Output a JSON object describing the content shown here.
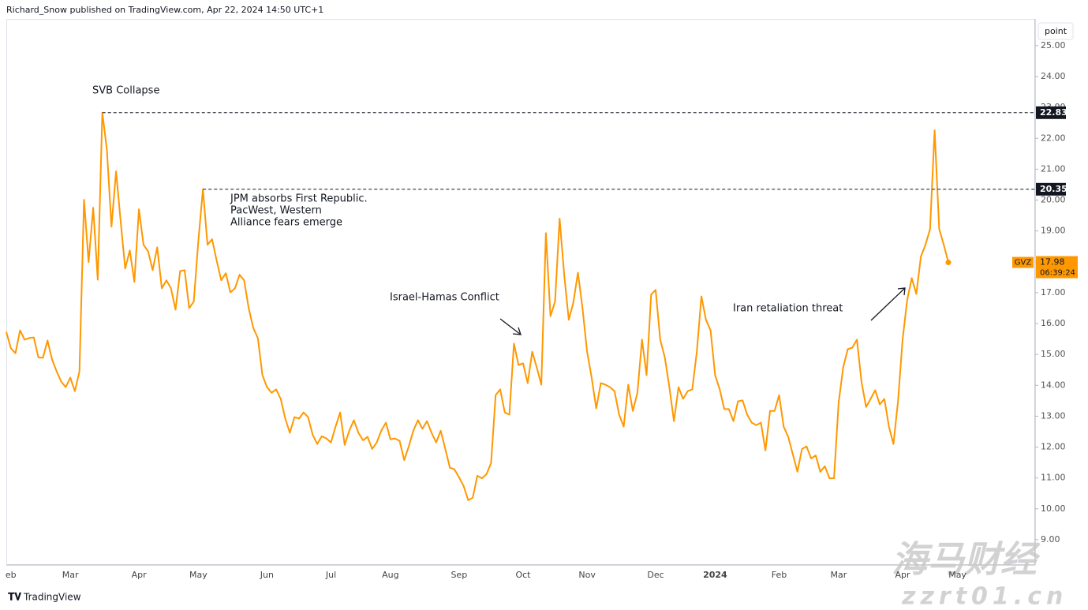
{
  "header": {
    "byline": "Richard_Snow published on TradingView.com, Apr 22, 2024 14:50 UTC+1",
    "scale_button": "point",
    "footer_logo": "TradingView",
    "watermark": [
      "海马财经",
      "zzrt01.cn"
    ]
  },
  "chart_data": {
    "type": "line",
    "categories": [
      null,
      "eb",
      null,
      null,
      null,
      null,
      null,
      null,
      null,
      null,
      null,
      null,
      null,
      null,
      "Mar",
      null,
      null,
      null,
      null,
      null,
      null,
      null,
      null,
      null,
      null,
      null,
      null,
      null,
      null,
      "Apr",
      null,
      null,
      null,
      null,
      null,
      null,
      null,
      null,
      null,
      null,
      null,
      null,
      "May",
      null,
      null,
      null,
      null,
      null,
      null,
      null,
      null,
      null,
      null,
      null,
      null,
      null,
      null,
      "Jun",
      null,
      null,
      null,
      null,
      null,
      null,
      null,
      null,
      null,
      null,
      null,
      null,
      null,
      "Jul",
      null,
      null,
      null,
      null,
      null,
      null,
      null,
      null,
      null,
      null,
      null,
      null,
      "Aug",
      null,
      null,
      null,
      null,
      null,
      null,
      null,
      null,
      null,
      null,
      null,
      null,
      null,
      null,
      "Sep",
      null,
      null,
      null,
      null,
      null,
      null,
      null,
      null,
      null,
      null,
      null,
      null,
      null,
      "Oct",
      null,
      null,
      null,
      null,
      null,
      null,
      null,
      null,
      null,
      null,
      null,
      null,
      null,
      "Nov",
      null,
      null,
      null,
      null,
      null,
      null,
      null,
      null,
      null,
      null,
      null,
      null,
      null,
      null,
      "Dec",
      null,
      null,
      null,
      null,
      null,
      null,
      null,
      null,
      null,
      null,
      null,
      null,
      "2024",
      null,
      null,
      null,
      null,
      null,
      null,
      null,
      null,
      null,
      null,
      null,
      null,
      null,
      "Feb",
      null,
      null,
      null,
      null,
      null,
      null,
      null,
      null,
      null,
      null,
      null,
      null,
      "Mar",
      null,
      null,
      null,
      null,
      null,
      null,
      null,
      null,
      null,
      null,
      null,
      null,
      null,
      "Apr",
      null,
      null,
      null,
      null,
      null,
      null,
      null,
      null,
      null,
      null,
      null,
      "May"
    ],
    "series": [
      {
        "name": "GVZ",
        "color": "#ff9800",
        "values": [
          15.73,
          15.2,
          15.04,
          15.78,
          15.48,
          15.53,
          15.55,
          14.91,
          14.89,
          15.45,
          14.84,
          14.45,
          14.12,
          13.94,
          14.25,
          13.81,
          14.45,
          20.01,
          17.99,
          19.75,
          17.42,
          22.83,
          21.62,
          19.14,
          20.93,
          19.32,
          17.78,
          18.37,
          17.35,
          19.7,
          18.55,
          18.34,
          17.73,
          18.47,
          17.14,
          17.4,
          17.14,
          16.45,
          17.7,
          17.73,
          16.5,
          16.71,
          18.68,
          20.35,
          18.55,
          18.73,
          18.04,
          17.4,
          17.63,
          17.01,
          17.14,
          17.58,
          17.4,
          16.5,
          15.86,
          15.53,
          14.33,
          13.94,
          13.76,
          13.87,
          13.56,
          12.92,
          12.46,
          12.97,
          12.92,
          13.12,
          12.97,
          12.4,
          12.1,
          12.35,
          12.28,
          12.15,
          12.66,
          13.12,
          12.07,
          12.53,
          12.87,
          12.46,
          12.22,
          12.33,
          11.94,
          12.15,
          12.53,
          12.79,
          12.25,
          12.28,
          12.2,
          11.58,
          12.02,
          12.53,
          12.87,
          12.59,
          12.84,
          12.46,
          12.15,
          12.53,
          11.94,
          11.33,
          11.28,
          11.02,
          10.74,
          10.28,
          10.36,
          11.07,
          10.99,
          11.12,
          11.48,
          13.68,
          13.87,
          13.12,
          13.05,
          15.35,
          14.66,
          14.71,
          14.07,
          15.09,
          14.58,
          14.02,
          18.93,
          16.24,
          16.71,
          19.4,
          17.58,
          16.12,
          16.68,
          17.65,
          16.5,
          15.09,
          14.25,
          13.25,
          14.07,
          14.02,
          13.94,
          13.81,
          13.05,
          12.66,
          14.02,
          13.17,
          13.76,
          15.48,
          14.33,
          16.94,
          17.09,
          15.48,
          14.91,
          13.94,
          12.84,
          13.94,
          13.56,
          13.81,
          13.87,
          15.09,
          16.88,
          16.12,
          15.78,
          14.33,
          13.87,
          13.23,
          13.23,
          12.84,
          13.48,
          13.51,
          13.05,
          12.79,
          12.71,
          12.79,
          11.89,
          13.17,
          13.17,
          13.68,
          12.66,
          12.33,
          11.76,
          11.2,
          11.94,
          12.02,
          11.63,
          11.73,
          11.2,
          11.38,
          10.99,
          10.99,
          13.43,
          14.58,
          15.17,
          15.22,
          15.48,
          14.12,
          13.3,
          13.56,
          13.84,
          13.38,
          13.56,
          12.66,
          12.1,
          13.48,
          15.48,
          16.76,
          17.47,
          16.96,
          18.17,
          18.55,
          19.06,
          22.26,
          19.06,
          18.55,
          17.98,
          null,
          null
        ]
      }
    ],
    "countdown": "06:39:24",
    "ylim": [
      8.18,
      25.84
    ],
    "yticks": [
      {
        "value": 9,
        "label": "9.00"
      },
      {
        "value": 10,
        "label": "10.00"
      },
      {
        "value": 11,
        "label": "11.00"
      },
      {
        "value": 12,
        "label": "12.00"
      },
      {
        "value": 13,
        "label": "13.00"
      },
      {
        "value": 14,
        "label": "14.00"
      },
      {
        "value": 15,
        "label": "15.00"
      },
      {
        "value": 16,
        "label": "16.00"
      },
      {
        "value": 17,
        "label": "17.00"
      },
      {
        "value": 18,
        "label": "18.00"
      },
      {
        "value": 19,
        "label": "19.00"
      },
      {
        "value": 20,
        "label": "20.00"
      },
      {
        "value": 21,
        "label": "21.00"
      },
      {
        "value": 22,
        "label": "22.00"
      },
      {
        "value": 23,
        "label": "23.00"
      },
      {
        "value": 24,
        "label": "24.00"
      },
      {
        "value": 25,
        "label": "25.00"
      }
    ],
    "reference_lines": [
      22.83,
      20.35
    ],
    "annotations": [
      [
        "SVB Collapse"
      ],
      [
        "JPM absorbs First Republic.",
        "PacWest, Western",
        "Alliance fears emerge"
      ],
      [
        "Israel-Hamas Conflict"
      ],
      [
        "Iran retaliation threat"
      ]
    ]
  }
}
